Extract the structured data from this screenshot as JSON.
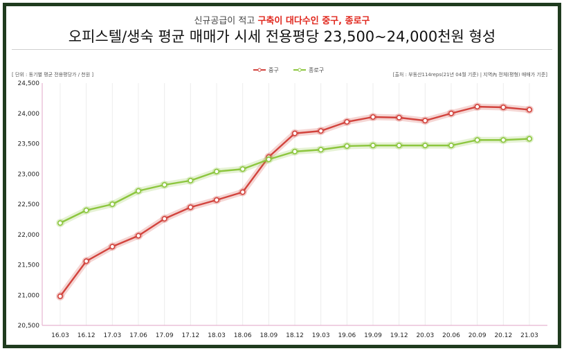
{
  "header": {
    "subtitle_plain": "신규공급이 적고 ",
    "subtitle_highlight": "구축이 대다수인 중구, 종로구",
    "title": "오피스텔/생숙 평균 매매가 시세 전용평당 23,500~24,000천원 형성"
  },
  "notes": {
    "unit": "[ 단위 : 동기별 평균 전용평당가 / 천원 ]",
    "source": "[출처 : 부동산114reps(21년 04월 기준) | 지역內 전체(평형) 매매가 기준]"
  },
  "colors": {
    "series_jung": "#d2433d",
    "series_jongno": "#8cc63e",
    "axis": "#e6b3d0",
    "grid": "#ececec"
  },
  "chart_data": {
    "type": "line",
    "categories": [
      "16.03",
      "16.12",
      "17.03",
      "17.06",
      "17.09",
      "17.12",
      "18.03",
      "18.06",
      "18.09",
      "18.12",
      "19.03",
      "19.06",
      "19.09",
      "19.12",
      "20.03",
      "20.06",
      "20.09",
      "20.12",
      "21.03"
    ],
    "ylim": [
      20500,
      24500
    ],
    "yticks": [
      20500,
      21000,
      21500,
      22000,
      22500,
      23000,
      23500,
      24000,
      24500
    ],
    "ytick_labels": [
      "20,500",
      "21,000",
      "21,500",
      "22,000",
      "22,500",
      "23,000",
      "23,500",
      "24,000",
      "24,500"
    ],
    "grid": "vertical",
    "legend_position": "top-center",
    "series": [
      {
        "name": "중구",
        "color": "#d2433d",
        "values": [
          20980,
          21560,
          21800,
          21980,
          22260,
          22450,
          22570,
          22700,
          23280,
          23670,
          23710,
          23860,
          23940,
          23930,
          23880,
          24000,
          24110,
          24100,
          24060
        ]
      },
      {
        "name": "종로구",
        "color": "#8cc63e",
        "values": [
          22190,
          22400,
          22500,
          22720,
          22820,
          22890,
          23040,
          23080,
          23240,
          23370,
          23400,
          23460,
          23470,
          23470,
          23470,
          23470,
          23560,
          23560,
          23580
        ]
      }
    ]
  }
}
